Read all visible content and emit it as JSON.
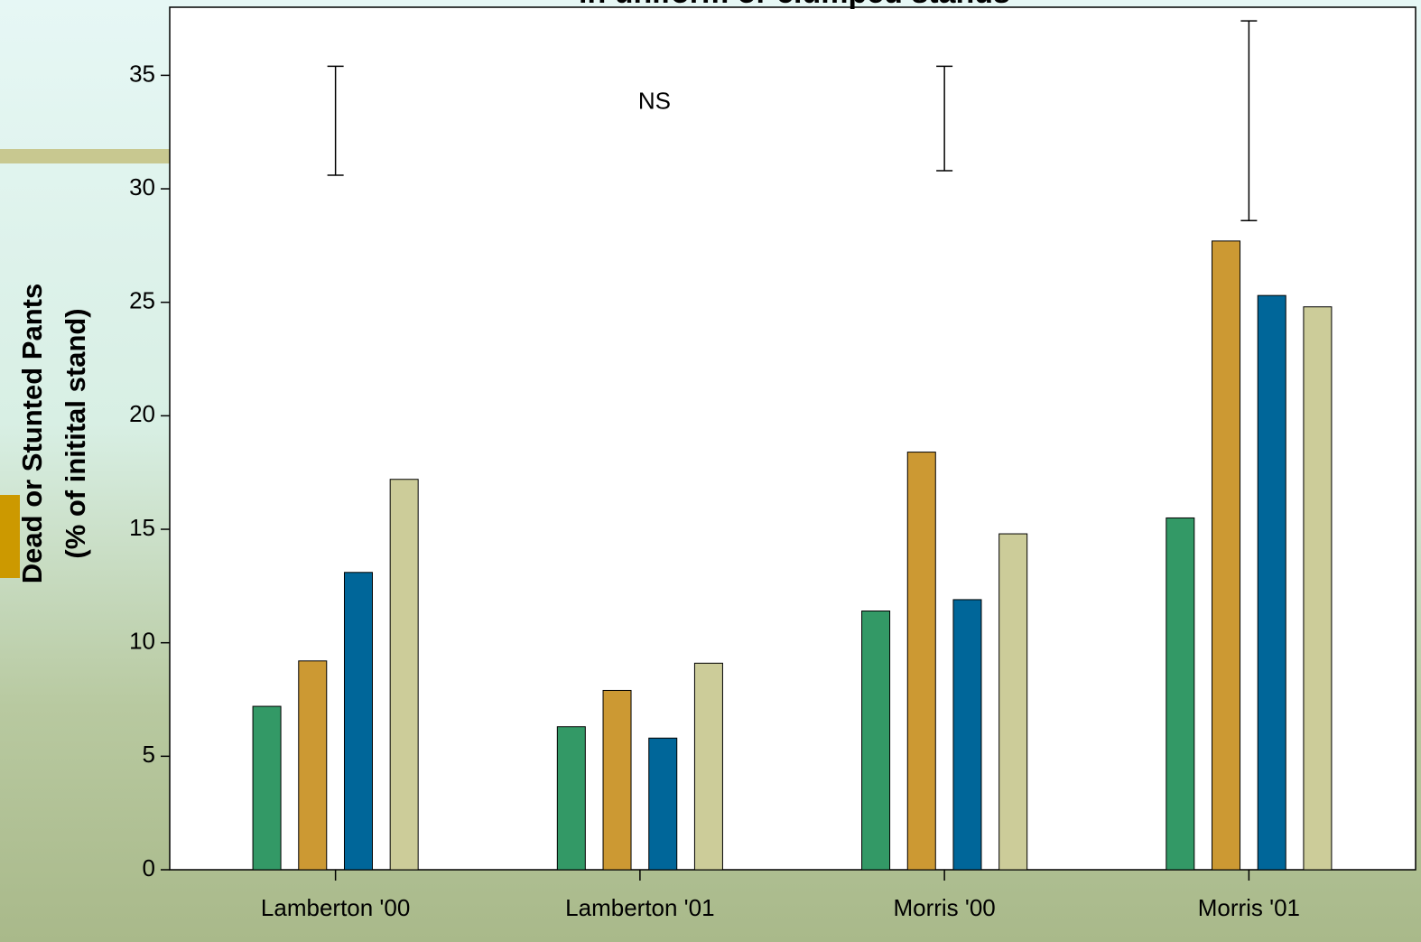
{
  "chart_data": {
    "type": "bar",
    "title": "in uniform or clumped stands",
    "y_label": [
      "Dead or Stunted Pants",
      "(% of initital stand)"
    ],
    "categories": [
      "Lamberton '00",
      "Lamberton '01",
      "Morris '00",
      "Morris '01"
    ],
    "series": [
      {
        "color": "#339966",
        "values": [
          7.2,
          6.3,
          11.4,
          15.5
        ]
      },
      {
        "color": "#cc9933",
        "values": [
          9.2,
          7.9,
          18.4,
          27.7
        ]
      },
      {
        "color": "#006699",
        "values": [
          13.1,
          5.8,
          11.9,
          25.3
        ]
      },
      {
        "color": "#cccc99",
        "values": [
          17.2,
          9.1,
          14.8,
          24.8
        ]
      }
    ],
    "error_bars": {
      "values": [
        33.0,
        null,
        33.1,
        33.0
      ],
      "errors": [
        2.4,
        null,
        2.3,
        4.4
      ]
    },
    "annotations": [
      {
        "text": "NS",
        "category": "Lamberton '01",
        "y": 33.8
      }
    ],
    "ylim": [
      0,
      38
    ],
    "yticks": [
      0,
      5,
      10,
      15,
      20,
      25,
      30,
      35
    ],
    "grid": false
  }
}
